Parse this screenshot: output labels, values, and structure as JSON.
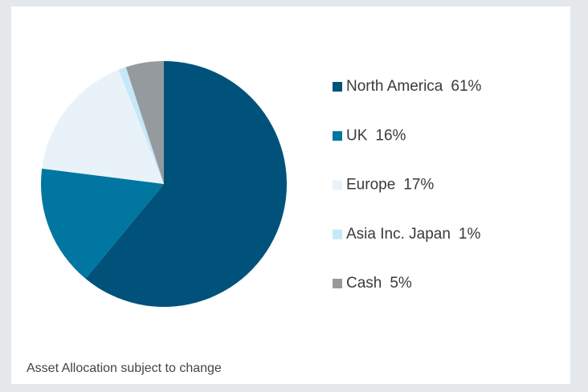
{
  "chart_data": {
    "type": "pie",
    "categories": [
      "North America",
      "UK",
      "Europe",
      "Asia Inc. Japan",
      "Cash"
    ],
    "values": [
      61,
      16,
      17,
      1,
      5
    ],
    "value_labels": [
      "61%",
      "16%",
      "17%",
      "1%",
      "5%"
    ],
    "colors": [
      "#00527a",
      "#0076a1",
      "#e9f2f9",
      "#c4e9f8",
      "#959a9e"
    ],
    "footnote": "Asset Allocation subject to change"
  }
}
